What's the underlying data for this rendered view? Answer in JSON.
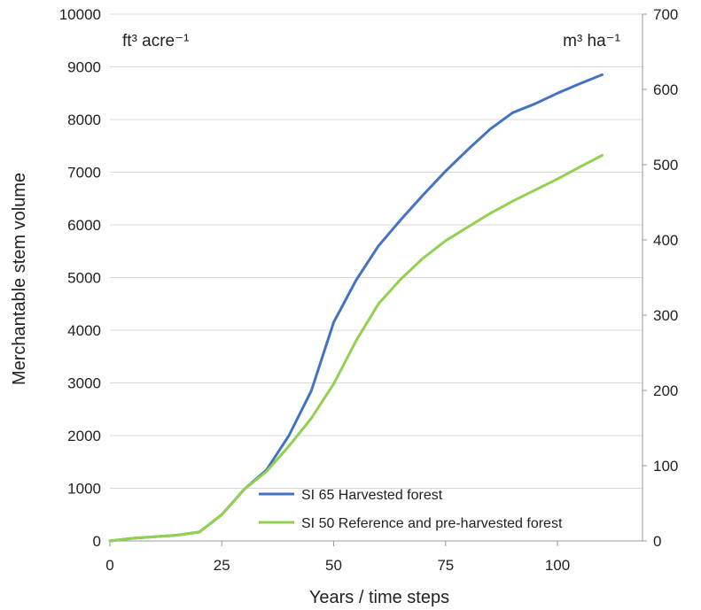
{
  "chart_data": {
    "type": "line",
    "xlabel": "Years / time steps",
    "ylabel": "Merchantable stem volume",
    "left_unit": "ft³ acre⁻¹",
    "right_unit": "m³ ha⁻¹",
    "x_ticks": [
      "0",
      "25",
      "50",
      "75",
      "100"
    ],
    "xlim": [
      0,
      119
    ],
    "ylim": [
      0,
      10000
    ],
    "y_ticks": [
      "0",
      "1000",
      "2000",
      "3000",
      "4000",
      "5000",
      "6000",
      "7000",
      "8000",
      "9000",
      "10000"
    ],
    "y2lim": [
      0,
      700
    ],
    "y2_ticks": [
      "0",
      "100",
      "200",
      "300",
      "400",
      "500",
      "600",
      "700"
    ],
    "grid": true,
    "legend_position": "bottom-right",
    "series": [
      {
        "name": "SI 65 Harvested forest",
        "color": "#4472c4",
        "x": [
          0,
          5,
          10,
          15,
          20,
          25,
          30,
          35,
          40,
          45,
          50,
          55,
          60,
          65,
          70,
          75,
          80,
          85,
          90,
          95,
          100,
          105,
          110
        ],
        "y": [
          0,
          50,
          80,
          110,
          170,
          500,
          980,
          1350,
          2000,
          2850,
          4150,
          4950,
          5600,
          6100,
          6570,
          7020,
          7430,
          7820,
          8130,
          8300,
          8500,
          8680,
          8850
        ]
      },
      {
        "name": "SI 50 Reference and pre-harvested forest",
        "color": "#92d050",
        "x": [
          0,
          5,
          10,
          15,
          20,
          25,
          30,
          35,
          40,
          45,
          50,
          55,
          60,
          65,
          70,
          75,
          80,
          85,
          90,
          95,
          100,
          105,
          110
        ],
        "y": [
          0,
          50,
          80,
          110,
          170,
          500,
          980,
          1320,
          1800,
          2330,
          2980,
          3800,
          4500,
          4970,
          5370,
          5700,
          5960,
          6220,
          6450,
          6660,
          6870,
          7100,
          7320
        ]
      }
    ]
  }
}
